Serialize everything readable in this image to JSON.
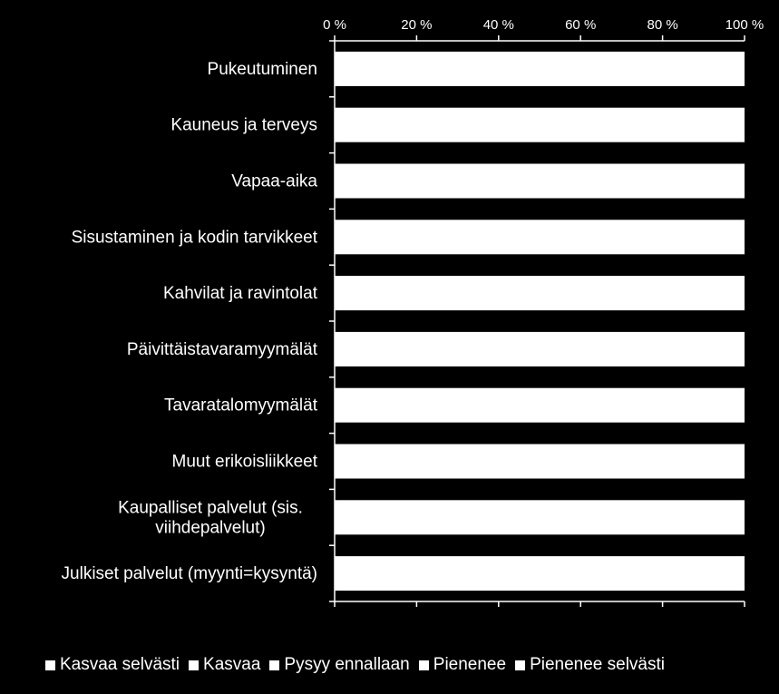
{
  "chart_data": {
    "type": "bar",
    "orientation": "horizontal",
    "stacked": "percent",
    "categories": [
      "Pukeutuminen",
      "Kauneus ja terveys",
      "Vapaa-aika",
      "Sisustaminen ja kodin tarvikkeet",
      "Kahvilat ja ravintolat",
      "Päivittäistavaramyymälät",
      "Tavaratalomyymälät",
      "Muut erikoisliikkeet",
      "Kaupalliset palvelut (sis. viihdepalvelut)",
      "Julkiset palvelut (myynti=kysyntä)"
    ],
    "x_ticks": [
      "0 %",
      "20 %",
      "40 %",
      "60 %",
      "80 %",
      "100 %"
    ],
    "xlim": [
      0,
      100
    ],
    "series": [
      {
        "name": "Kasvaa selvästi",
        "values": [
          0,
          0,
          0,
          0,
          0,
          0,
          0,
          0,
          0,
          0
        ],
        "color": "#ffffff"
      },
      {
        "name": "Kasvaa",
        "values": [
          0,
          0,
          0,
          0,
          0,
          0,
          0,
          0,
          0,
          0
        ],
        "color": "#ffffff"
      },
      {
        "name": "Pysyy ennallaan",
        "values": [
          100,
          100,
          100,
          100,
          100,
          100,
          100,
          100,
          100,
          100
        ],
        "color": "#ffffff"
      },
      {
        "name": "Pienenee",
        "values": [
          0,
          0,
          0,
          0,
          0,
          0,
          0,
          0,
          0,
          0
        ],
        "color": "#ffffff"
      },
      {
        "name": "Pienenee selvästi",
        "values": [
          0,
          0,
          0,
          0,
          0,
          0,
          0,
          0,
          0,
          0
        ],
        "color": "#ffffff"
      }
    ],
    "grid": true,
    "legend_position": "bottom",
    "background": "#000000",
    "bar_color": "#ffffff"
  }
}
